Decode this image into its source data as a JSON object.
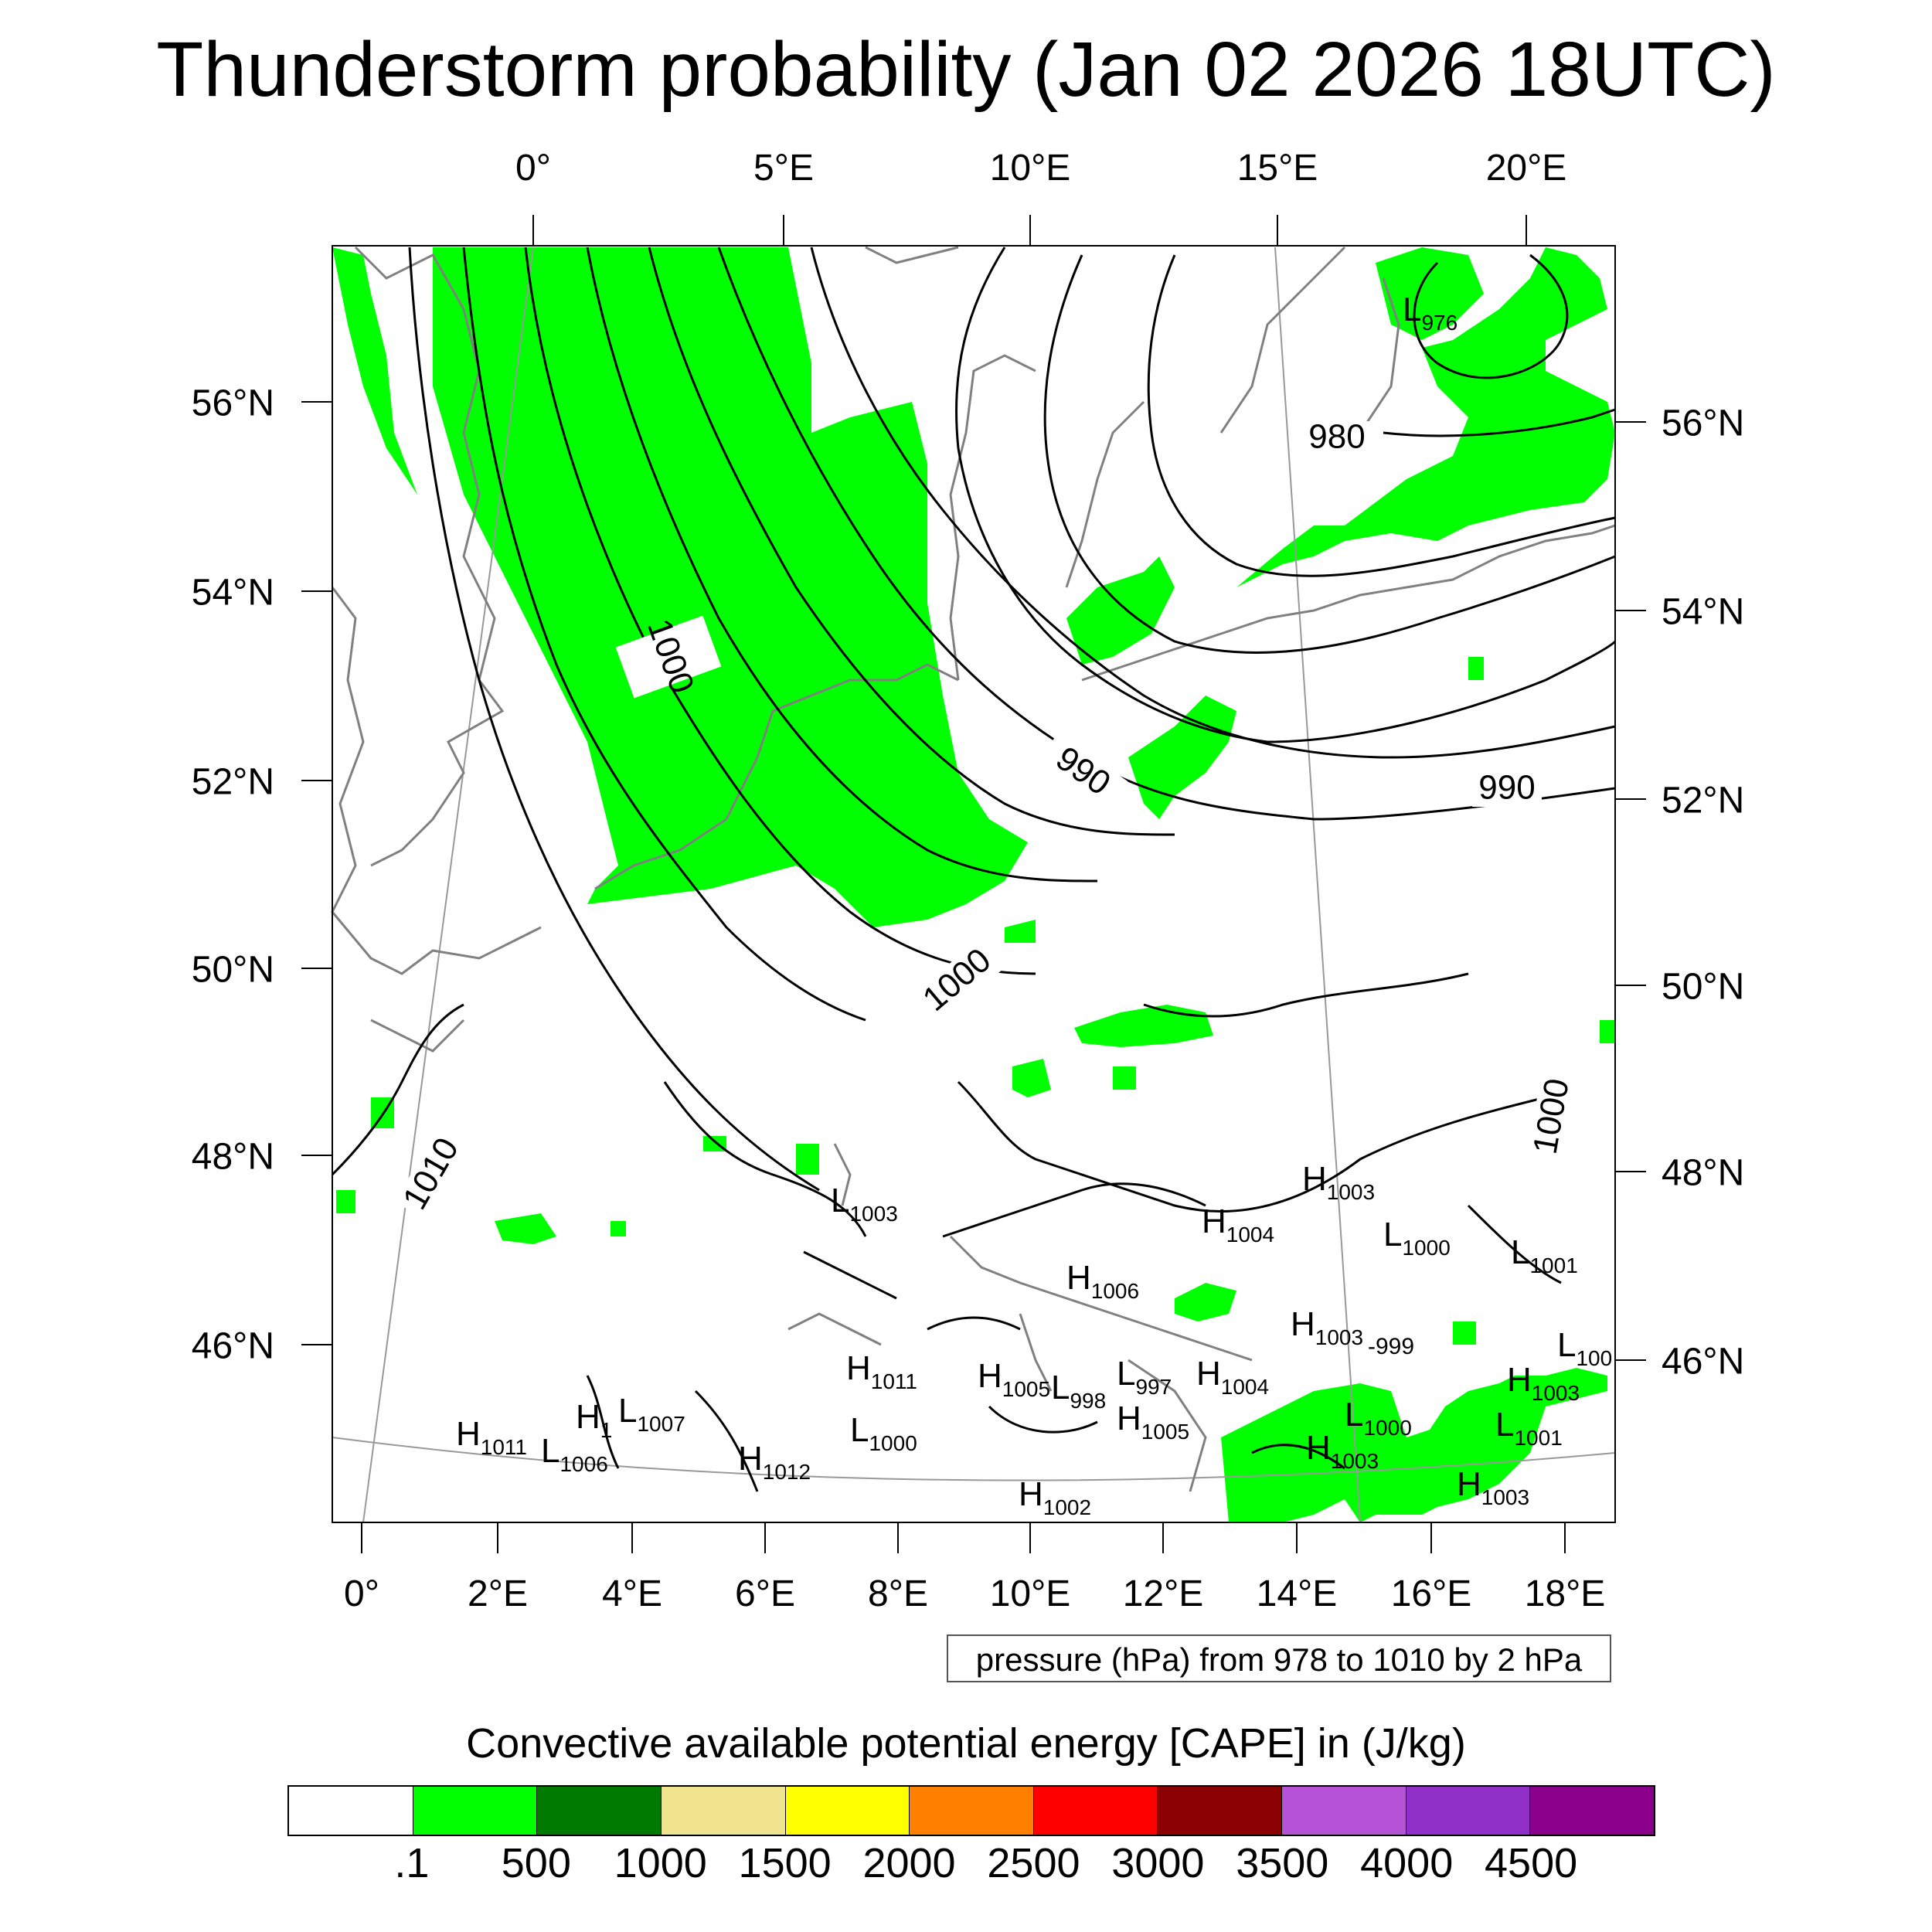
{
  "title": "Thunderstorm probability (Jan 02 2026 18UTC)",
  "top_lon_labels": [
    "0°",
    "5°E",
    "10°E",
    "15°E",
    "20°E"
  ],
  "bottom_lon_labels": [
    "0°",
    "2°E",
    "4°E",
    "6°E",
    "8°E",
    "10°E",
    "12°E",
    "14°E",
    "16°E",
    "18°E"
  ],
  "left_lat_labels": [
    "56°N",
    "54°N",
    "52°N",
    "50°N",
    "48°N",
    "46°N"
  ],
  "right_lat_labels": [
    "56°N",
    "54°N",
    "52°N",
    "50°N",
    "48°N",
    "46°N"
  ],
  "isobar_labels": [
    "1000",
    "990",
    "990",
    "980",
    "1000",
    "1000",
    "1010"
  ],
  "pressure_centers": [
    {
      "type": "L",
      "value": "976"
    },
    {
      "type": "H",
      "value": "1003"
    },
    {
      "type": "H",
      "value": "1004"
    },
    {
      "type": "L",
      "value": "1000"
    },
    {
      "type": "L",
      "value": "1001"
    },
    {
      "type": "L",
      "value": "1003"
    },
    {
      "type": "H",
      "value": "1006"
    },
    {
      "type": "H",
      "value": "1003"
    },
    {
      "type": "L",
      "value": "100"
    },
    {
      "type": "H",
      "value": "1011"
    },
    {
      "type": "H",
      "value": "1005"
    },
    {
      "type": "L",
      "value": "997"
    },
    {
      "type": "H",
      "value": "1004"
    },
    {
      "type": "L",
      "value": "998"
    },
    {
      "type": "H",
      "value": "1003"
    },
    {
      "type": "H",
      "value": "1"
    },
    {
      "type": "L",
      "value": "1007"
    },
    {
      "type": "H",
      "value": "1011"
    },
    {
      "type": "L",
      "value": "1006"
    },
    {
      "type": "L",
      "value": "1000"
    },
    {
      "type": "H",
      "value": "1005"
    },
    {
      "type": "L",
      "value": "1000"
    },
    {
      "type": "L",
      "value": "1001"
    },
    {
      "type": "H",
      "value": "1012"
    },
    {
      "type": "H",
      "value": "1003"
    },
    {
      "type": "H",
      "value": "1003"
    },
    {
      "type": "H",
      "value": "1002"
    }
  ],
  "stray_label": "-999",
  "pressure_note": "pressure (hPa) from 978 to 1010 by 2 hPa",
  "colorbar": {
    "title": "Convective available potential energy [CAPE] in (J/kg)",
    "colors": [
      "#ffffff",
      "#00ff00",
      "#007a00",
      "#efe38e",
      "#ffff00",
      "#ff8000",
      "#ff0000",
      "#8b0000",
      "#b552d6",
      "#9030c8",
      "#8b008b"
    ],
    "labels": [
      ".1",
      "500",
      "1000",
      "1500",
      "2000",
      "2500",
      "3000",
      "3500",
      "4000",
      "4500"
    ]
  }
}
